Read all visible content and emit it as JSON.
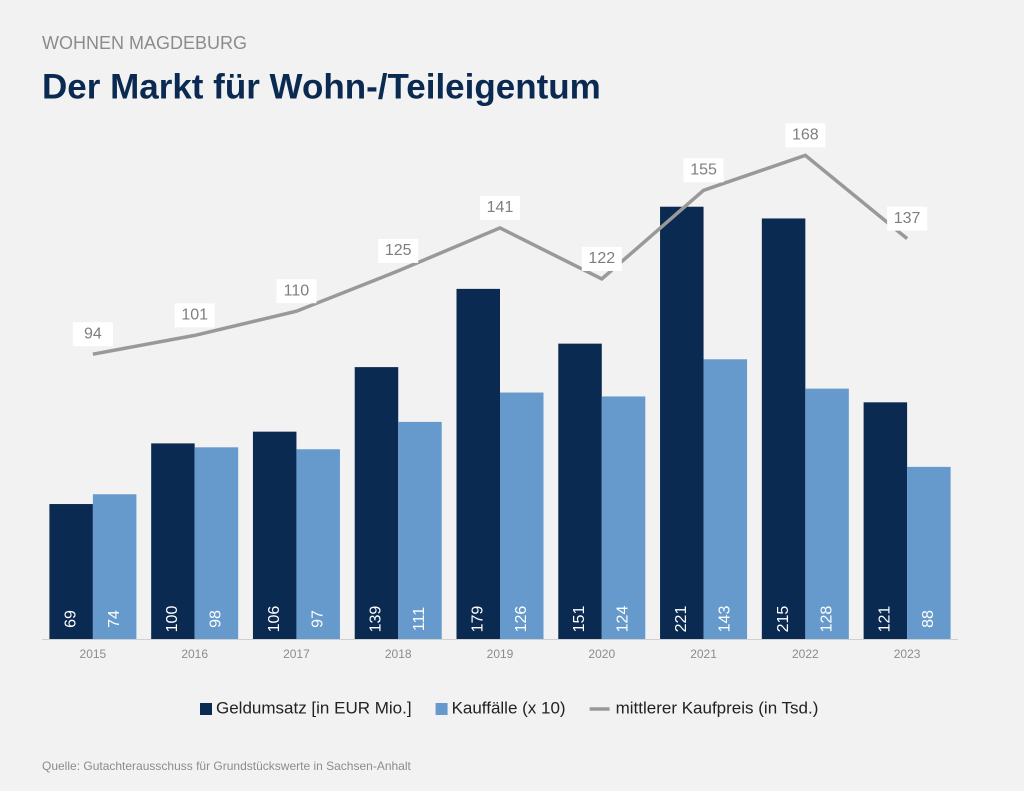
{
  "chart_data": {
    "type": "bar",
    "subtitle": "WOHNEN MAGDEBURG",
    "title": "Der Markt für Wohn-/Teileigentum",
    "source": "Quelle: Gutachterausschuss für Grundstückswerte in Sachsen-Anhalt",
    "categories": [
      "2015",
      "2016",
      "2017",
      "2018",
      "2019",
      "2020",
      "2021",
      "2022",
      "2023"
    ],
    "series": [
      {
        "name": "Geldumsatz [in EUR Mio.]",
        "color": "#0b2a52",
        "values": [
          69,
          100,
          106,
          139,
          179,
          151,
          221,
          215,
          121
        ]
      },
      {
        "name": "Kauffälle (x 10)",
        "color": "#6699cc",
        "values": [
          74,
          98,
          97,
          111,
          126,
          124,
          143,
          128,
          88
        ]
      },
      {
        "name": "mittlerer Kaufpreis (in Tsd.)",
        "color": "#999999",
        "type": "line",
        "axis": "y2",
        "values": [
          94,
          101,
          110,
          125,
          141,
          122,
          155,
          168,
          137
        ]
      }
    ],
    "ylim": [
      0,
      250
    ],
    "y2lim": [
      -12,
      170
    ]
  }
}
